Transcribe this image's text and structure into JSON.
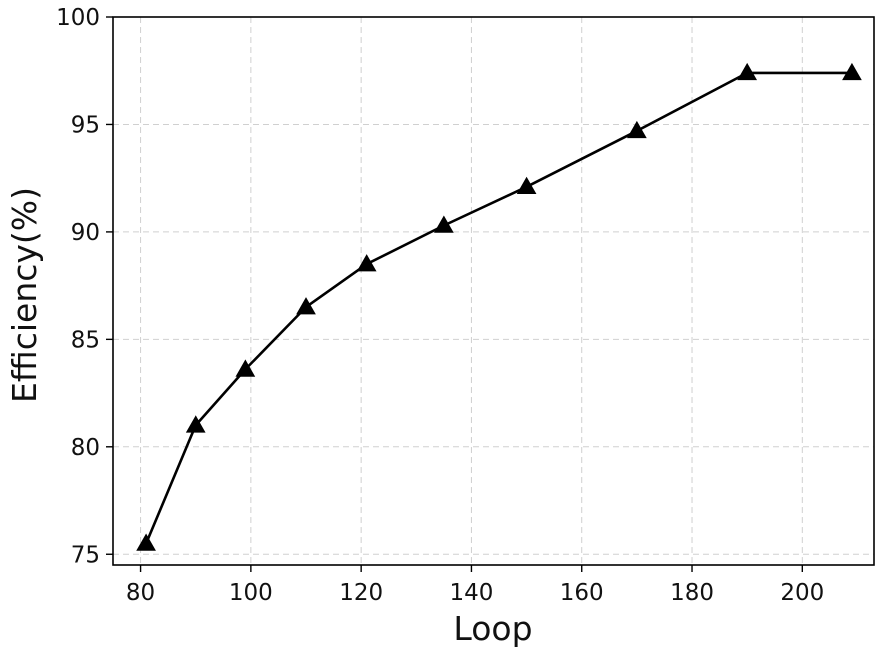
{
  "chart_data": {
    "type": "line",
    "title": "",
    "xlabel": "Loop",
    "ylabel": "Efficiency(%)",
    "xlim": [
      75,
      213
    ],
    "ylim": [
      74.5,
      100
    ],
    "xticks": [
      80,
      100,
      120,
      140,
      160,
      180,
      200
    ],
    "yticks": [
      75,
      80,
      85,
      90,
      95,
      100
    ],
    "grid": true,
    "legend": "none",
    "series": [
      {
        "marker": "triangle",
        "color": "#000000",
        "x": [
          81,
          90,
          99,
          110,
          121,
          135,
          150,
          170,
          190,
          209
        ],
        "y": [
          75.5,
          81.0,
          83.6,
          86.5,
          88.5,
          90.3,
          92.1,
          94.7,
          97.4,
          97.4
        ]
      }
    ]
  }
}
